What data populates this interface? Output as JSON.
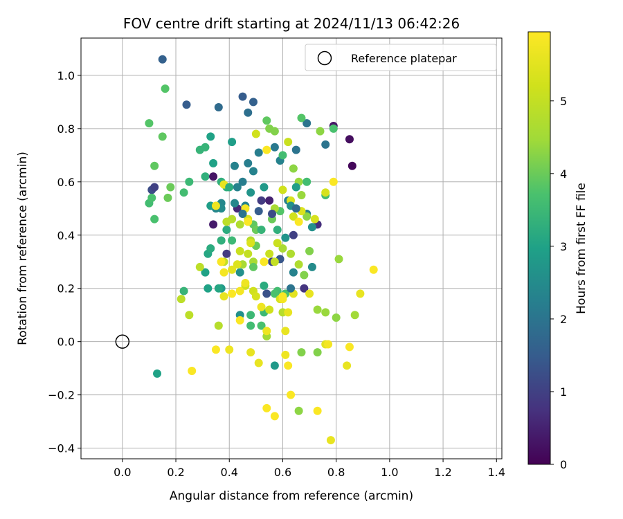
{
  "chart_data": {
    "type": "scatter",
    "title": "FOV centre drift starting at 2024/11/13 06:42:26",
    "xlabel": "Angular distance from reference (arcmin)",
    "ylabel": "Rotation from reference (arcmin)",
    "xlim": [
      -0.155,
      1.42
    ],
    "ylim": [
      -0.44,
      1.14
    ],
    "x_ticks": [
      0.0,
      0.2,
      0.4,
      0.6,
      0.8,
      1.0,
      1.2,
      1.4
    ],
    "x_tick_labels": [
      "0.0",
      "0.2",
      "0.4",
      "0.6",
      "0.8",
      "1.0",
      "1.2",
      "1.4"
    ],
    "y_ticks": [
      -0.4,
      -0.2,
      0.0,
      0.2,
      0.4,
      0.6,
      0.8,
      1.0
    ],
    "y_tick_labels": [
      "−0.4",
      "−0.2",
      "0.0",
      "0.2",
      "0.4",
      "0.6",
      "0.8",
      "1.0"
    ],
    "grid": true,
    "colormap": "viridis",
    "colorbar": {
      "label": "Hours from first FF file",
      "range": [
        0,
        5.95
      ],
      "ticks": [
        0,
        1,
        2,
        3,
        4,
        5
      ],
      "tick_labels": [
        "0",
        "1",
        "2",
        "3",
        "4",
        "5"
      ]
    },
    "legend": {
      "position": "upper-right",
      "entries": [
        {
          "name": "Reference platepar",
          "marker": "open-circle"
        }
      ]
    },
    "reference_point": {
      "x": 0.0,
      "y": 0.0
    },
    "points": [
      [
        0.85,
        0.76,
        0.2
      ],
      [
        0.86,
        0.66,
        0.1
      ],
      [
        0.79,
        0.81,
        0.3
      ],
      [
        0.34,
        0.44,
        0.4
      ],
      [
        0.55,
        0.53,
        0.5
      ],
      [
        0.43,
        0.5,
        0.6
      ],
      [
        0.73,
        0.44,
        0.7
      ],
      [
        0.68,
        0.2,
        0.8
      ],
      [
        0.39,
        0.33,
        0.9
      ],
      [
        0.64,
        0.4,
        1.0
      ],
      [
        0.56,
        0.3,
        1.1
      ],
      [
        0.11,
        0.57,
        1.2
      ],
      [
        0.54,
        0.18,
        1.3
      ],
      [
        0.59,
        0.31,
        1.4
      ],
      [
        0.45,
        0.92,
        1.5
      ],
      [
        0.24,
        0.89,
        1.5
      ],
      [
        0.15,
        1.06,
        1.6
      ],
      [
        0.49,
        0.9,
        1.6
      ],
      [
        0.36,
        0.88,
        1.8
      ],
      [
        0.47,
        0.86,
        1.9
      ],
      [
        0.69,
        0.82,
        2.0
      ],
      [
        0.76,
        0.74,
        2.0
      ],
      [
        0.65,
        0.72,
        2.0
      ],
      [
        0.57,
        0.73,
        2.1
      ],
      [
        0.51,
        0.71,
        2.2
      ],
      [
        0.42,
        0.66,
        2.3
      ],
      [
        0.59,
        0.68,
        2.3
      ],
      [
        0.43,
        0.58,
        2.3
      ],
      [
        0.45,
        0.6,
        2.2
      ],
      [
        0.49,
        0.64,
        2.3
      ],
      [
        0.37,
        0.52,
        2.4
      ],
      [
        0.42,
        0.52,
        2.4
      ],
      [
        0.46,
        0.51,
        2.3
      ],
      [
        0.35,
        0.5,
        2.4
      ],
      [
        0.62,
        0.53,
        2.3
      ],
      [
        0.69,
        0.48,
        2.2
      ],
      [
        0.64,
        0.26,
        2.3
      ],
      [
        0.71,
        0.28,
        2.5
      ],
      [
        0.37,
        0.5,
        2.5
      ],
      [
        0.44,
        0.26,
        2.6
      ],
      [
        0.44,
        0.1,
        2.6
      ],
      [
        0.57,
        -0.09,
        2.8
      ],
      [
        0.61,
        0.39,
        2.7
      ],
      [
        0.48,
        0.56,
        2.7
      ],
      [
        0.53,
        0.58,
        2.8
      ],
      [
        0.13,
        -0.12,
        3.0
      ],
      [
        0.41,
        0.75,
        2.9
      ],
      [
        0.33,
        0.77,
        3.0
      ],
      [
        0.34,
        0.67,
        3.0
      ],
      [
        0.33,
        0.51,
        2.9
      ],
      [
        0.37,
        0.2,
        2.8
      ],
      [
        0.31,
        0.26,
        3.0
      ],
      [
        0.32,
        0.2,
        3.0
      ],
      [
        0.36,
        0.2,
        3.1
      ],
      [
        0.32,
        0.33,
        3.1
      ],
      [
        0.33,
        0.35,
        3.2
      ],
      [
        0.39,
        0.42,
        3.2
      ],
      [
        0.37,
        0.38,
        3.3
      ],
      [
        0.31,
        0.62,
        3.3
      ],
      [
        0.37,
        0.6,
        3.3
      ],
      [
        0.39,
        0.58,
        3.3
      ],
      [
        0.29,
        0.72,
        3.4
      ],
      [
        0.31,
        0.73,
        3.4
      ],
      [
        0.23,
        0.19,
        3.4
      ],
      [
        0.25,
        0.6,
        3.5
      ],
      [
        0.23,
        0.56,
        3.6
      ],
      [
        0.1,
        0.52,
        3.6
      ],
      [
        0.12,
        0.46,
        3.7
      ],
      [
        0.11,
        0.54,
        3.7
      ],
      [
        0.48,
        0.06,
        3.6
      ],
      [
        0.53,
        0.11,
        3.5
      ],
      [
        0.48,
        0.1,
        3.5
      ],
      [
        0.52,
        0.06,
        3.7
      ],
      [
        0.58,
        0.19,
        3.6
      ],
      [
        0.57,
        0.18,
        3.7
      ],
      [
        0.61,
        0.18,
        3.7
      ],
      [
        0.76,
        0.55,
        3.6
      ],
      [
        0.79,
        0.8,
        3.7
      ],
      [
        0.67,
        0.84,
        3.8
      ],
      [
        0.54,
        0.83,
        3.9
      ],
      [
        0.6,
        0.7,
        3.6
      ],
      [
        0.16,
        0.95,
        3.8
      ],
      [
        0.1,
        0.82,
        3.8
      ],
      [
        0.15,
        0.77,
        3.9
      ],
      [
        0.12,
        0.66,
        3.9
      ],
      [
        0.17,
        0.54,
        4.0
      ],
      [
        0.18,
        0.58,
        4.0
      ],
      [
        0.49,
        0.44,
        3.9
      ],
      [
        0.5,
        0.42,
        4.0
      ],
      [
        0.5,
        0.36,
        4.0
      ],
      [
        0.56,
        0.46,
        4.0
      ],
      [
        0.59,
        0.49,
        3.8
      ],
      [
        0.57,
        0.79,
        4.2
      ],
      [
        0.74,
        0.79,
        4.3
      ],
      [
        0.55,
        0.8,
        4.2
      ],
      [
        0.64,
        0.65,
        4.3
      ],
      [
        0.66,
        0.6,
        4.4
      ],
      [
        0.67,
        0.55,
        4.4
      ],
      [
        0.69,
        0.47,
        4.3
      ],
      [
        0.7,
        0.34,
        4.2
      ],
      [
        0.68,
        0.25,
        4.2
      ],
      [
        0.67,
        -0.04,
        4.2
      ],
      [
        0.73,
        -0.04,
        4.2
      ],
      [
        0.66,
        -0.26,
        4.3
      ],
      [
        0.81,
        0.31,
        4.4
      ],
      [
        0.8,
        0.09,
        4.3
      ],
      [
        0.76,
        0.11,
        4.4
      ],
      [
        0.73,
        0.12,
        4.4
      ],
      [
        0.87,
        0.1,
        4.5
      ],
      [
        0.54,
        0.02,
        4.5
      ],
      [
        0.49,
        0.3,
        4.6
      ],
      [
        0.45,
        0.29,
        4.6
      ],
      [
        0.6,
        0.35,
        4.6
      ],
      [
        0.63,
        0.33,
        4.7
      ],
      [
        0.6,
        0.11,
        4.8
      ],
      [
        0.66,
        0.29,
        4.7
      ],
      [
        0.48,
        0.38,
        4.8
      ],
      [
        0.44,
        0.44,
        4.7
      ],
      [
        0.41,
        0.46,
        4.8
      ],
      [
        0.39,
        0.45,
        4.9
      ],
      [
        0.36,
        0.06,
        4.8
      ],
      [
        0.25,
        0.1,
        4.9
      ],
      [
        0.22,
        0.16,
        4.9
      ],
      [
        0.29,
        0.28,
        4.9
      ],
      [
        0.38,
        0.3,
        5.0
      ],
      [
        0.37,
        0.3,
        5.0
      ],
      [
        0.44,
        0.34,
        5.1
      ],
      [
        0.47,
        0.33,
        5.0
      ],
      [
        0.53,
        0.3,
        5.1
      ],
      [
        0.55,
        0.33,
        5.1
      ],
      [
        0.57,
        0.3,
        5.0
      ],
      [
        0.58,
        0.37,
        5.1
      ],
      [
        0.46,
        0.21,
        5.2
      ],
      [
        0.49,
        0.19,
        5.2
      ],
      [
        0.5,
        0.17,
        5.3
      ],
      [
        0.55,
        0.12,
        5.2
      ],
      [
        0.59,
        0.16,
        5.3
      ],
      [
        0.64,
        0.47,
        5.2
      ],
      [
        0.63,
        0.53,
        5.3
      ],
      [
        0.67,
        0.49,
        5.4
      ],
      [
        0.72,
        0.46,
        5.3
      ],
      [
        0.76,
        0.56,
        5.3
      ],
      [
        0.6,
        0.57,
        5.2
      ],
      [
        0.62,
        0.75,
        5.1
      ],
      [
        0.5,
        0.78,
        5.2
      ],
      [
        0.47,
        0.46,
        5.3
      ],
      [
        0.48,
        0.37,
        5.4
      ],
      [
        0.43,
        0.29,
        5.4
      ],
      [
        0.41,
        0.27,
        5.5
      ],
      [
        0.38,
        0.17,
        5.6
      ],
      [
        0.46,
        0.22,
        5.7
      ],
      [
        0.52,
        0.13,
        5.7
      ],
      [
        0.54,
        0.04,
        5.7
      ],
      [
        0.61,
        0.04,
        5.6
      ],
      [
        0.62,
        0.11,
        5.6
      ],
      [
        0.64,
        0.18,
        5.5
      ],
      [
        0.7,
        0.18,
        5.6
      ],
      [
        0.76,
        -0.01,
        5.5
      ],
      [
        0.84,
        -0.09,
        5.6
      ],
      [
        0.89,
        0.18,
        5.6
      ],
      [
        0.94,
        0.27,
        5.9
      ],
      [
        0.79,
        0.6,
        5.9
      ],
      [
        0.6,
        0.16,
        5.8
      ],
      [
        0.6,
        0.17,
        5.9
      ],
      [
        0.44,
        0.19,
        5.8
      ],
      [
        0.41,
        0.18,
        5.9
      ],
      [
        0.37,
        0.3,
        5.9
      ],
      [
        0.38,
        0.26,
        5.8
      ],
      [
        0.44,
        0.08,
        5.9
      ],
      [
        0.35,
        -0.03,
        5.9
      ],
      [
        0.26,
        -0.11,
        5.9
      ],
      [
        0.4,
        -0.03,
        5.7
      ],
      [
        0.48,
        -0.04,
        5.6
      ],
      [
        0.51,
        -0.08,
        5.6
      ],
      [
        0.61,
        -0.05,
        5.7
      ],
      [
        0.62,
        -0.09,
        5.9
      ],
      [
        0.63,
        -0.2,
        5.9
      ],
      [
        0.54,
        -0.25,
        5.9
      ],
      [
        0.57,
        -0.28,
        5.9
      ],
      [
        0.73,
        -0.26,
        5.9
      ],
      [
        0.78,
        -0.37,
        5.6
      ],
      [
        0.77,
        -0.01,
        5.8
      ],
      [
        0.85,
        -0.02,
        5.9
      ],
      [
        0.53,
        0.3,
        5.9
      ],
      [
        0.47,
        0.45,
        5.9
      ],
      [
        0.54,
        0.72,
        5.9
      ],
      [
        0.66,
        0.45,
        5.9
      ],
      [
        0.35,
        0.51,
        5.7
      ],
      [
        0.38,
        0.59,
        5.6
      ],
      [
        0.46,
        0.5,
        5.8
      ],
      [
        0.57,
        0.5,
        4.6
      ],
      [
        0.63,
        0.51,
        2.6
      ],
      [
        0.41,
        0.38,
        3.5
      ],
      [
        0.52,
        0.42,
        3.4
      ],
      [
        0.58,
        0.42,
        3.3
      ],
      [
        0.56,
        0.48,
        1.2
      ],
      [
        0.52,
        0.53,
        0.9
      ],
      [
        0.65,
        0.5,
        1.8
      ],
      [
        0.51,
        0.49,
        1.5
      ],
      [
        0.45,
        0.48,
        2.0
      ],
      [
        0.4,
        0.58,
        3.2
      ],
      [
        0.71,
        0.43,
        2.6
      ],
      [
        0.53,
        0.21,
        3.2
      ],
      [
        0.49,
        0.28,
        3.9
      ],
      [
        0.63,
        0.2,
        2.0
      ],
      [
        0.69,
        0.6,
        3.6
      ],
      [
        0.65,
        0.58,
        2.9
      ],
      [
        0.47,
        0.67,
        2.2
      ],
      [
        0.34,
        0.62,
        0.3
      ],
      [
        0.12,
        0.58,
        1.0
      ]
    ]
  }
}
